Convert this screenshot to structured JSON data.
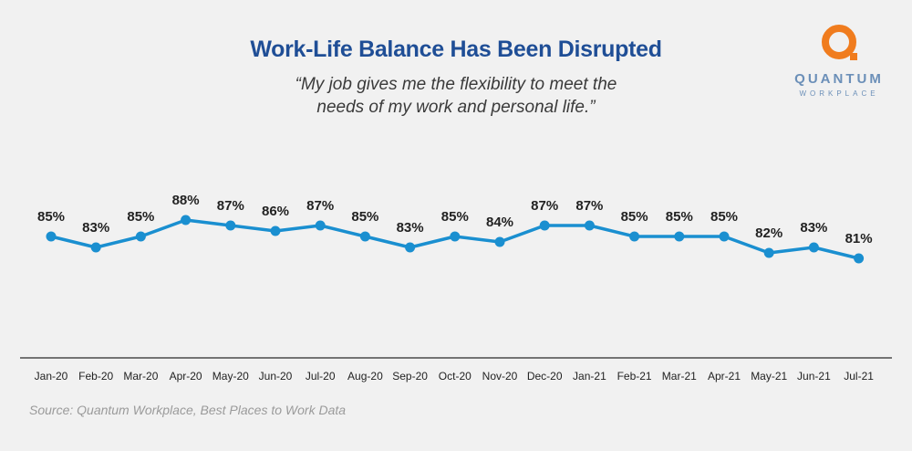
{
  "title": "Work-Life Balance Has Been Disrupted",
  "subtitle_lines": [
    "“My job gives me the flexibility to meet the",
    "needs of my work and personal life.”"
  ],
  "logo": {
    "word": "QUANTUM",
    "subword": "WORKPLACE",
    "mark_color": "#f07c1e",
    "text_color": "#6b8fb8"
  },
  "source": "Source: Quantum Workplace, Best Places to Work Data",
  "colors": {
    "line": "#1a8fd0",
    "title": "#1f4e96",
    "background": "#f1f1f1"
  },
  "chart_data": {
    "type": "line",
    "categories": [
      "Jan-20",
      "Feb-20",
      "Mar-20",
      "Apr-20",
      "May-20",
      "Jun-20",
      "Jul-20",
      "Aug-20",
      "Sep-20",
      "Oct-20",
      "Nov-20",
      "Dec-20",
      "Jan-21",
      "Feb-21",
      "Mar-21",
      "Apr-21",
      "May-21",
      "Jun-21",
      "Jul-21"
    ],
    "values": [
      85,
      83,
      85,
      88,
      87,
      86,
      87,
      85,
      83,
      85,
      84,
      87,
      87,
      85,
      85,
      85,
      82,
      83,
      81
    ],
    "data_labels": [
      "85%",
      "83%",
      "85%",
      "88%",
      "87%",
      "86%",
      "87%",
      "85%",
      "83%",
      "85%",
      "84%",
      "87%",
      "87%",
      "85%",
      "85%",
      "85%",
      "82%",
      "83%",
      "81%"
    ],
    "title": "Work-Life Balance Has Been Disrupted",
    "xlabel": "",
    "ylabel": "",
    "grid": false,
    "legend": "none"
  }
}
